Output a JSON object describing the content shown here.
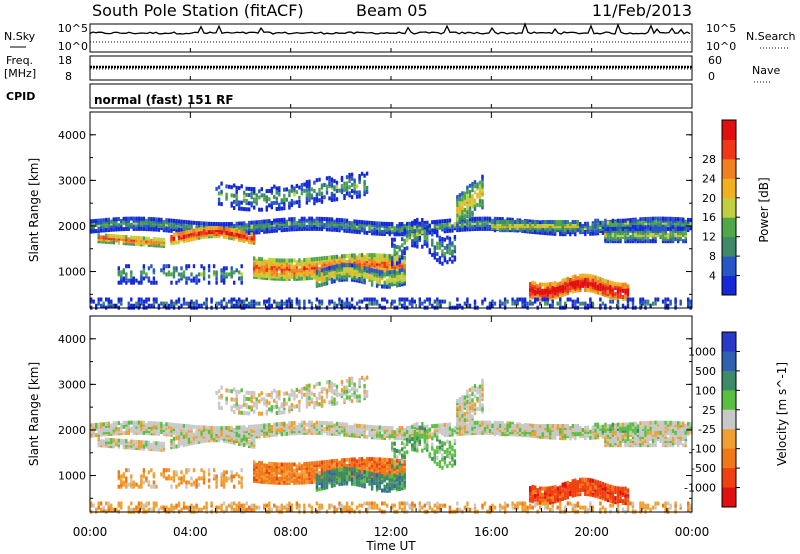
{
  "header": {
    "title": "South Pole Station (fitACF)",
    "beam": "Beam 05",
    "date": "11/Feb/2013"
  },
  "side_labels": {
    "nsky": "N.Sky",
    "nsearch": "N.Search",
    "freq_top": "Freq.",
    "freq_unit": "[MHz]",
    "nave": "Nave",
    "cpid": "CPID"
  },
  "strip_ticks": {
    "nsky_left": [
      "10^5",
      "10^0"
    ],
    "nsky_right": [
      "10^5",
      "10^0"
    ],
    "freq_left": [
      "18",
      "8"
    ],
    "nave_right": [
      "60",
      "0"
    ]
  },
  "cpid_text": "normal (fast) 151 RF",
  "chart_data": [
    {
      "type": "heatmap",
      "name": "power",
      "ylabel": "Slant Range [km]",
      "xlabel": "",
      "ylim": [
        200,
        4500
      ],
      "yticks": [
        "1000",
        "2000",
        "3000",
        "4000"
      ],
      "colorbar": {
        "label": "Power [dB]",
        "ticks": [
          "4",
          "8",
          "12",
          "16",
          "20",
          "24",
          "28"
        ],
        "colors": [
          "#1428d8",
          "#2855c8",
          "#3c8a68",
          "#4ea84a",
          "#c0d040",
          "#f0b020",
          "#f08020",
          "#f03818",
          "#e01010"
        ]
      }
    },
    {
      "type": "heatmap",
      "name": "velocity",
      "ylabel": "Slant Range [km]",
      "xlabel": "Time UT",
      "ylim": [
        200,
        4500
      ],
      "yticks": [
        "1000",
        "2000",
        "3000",
        "4000"
      ],
      "xticks": [
        "00:00",
        "04:00",
        "08:00",
        "12:00",
        "16:00",
        "20:00",
        "00:00"
      ],
      "colorbar": {
        "label": "Velocity [m s^-1]",
        "ticks": [
          "1000",
          "500",
          "100",
          "25",
          "-25",
          "-100",
          "-500",
          "-1000"
        ],
        "colors": [
          "#2838c8",
          "#3060b0",
          "#3c8a68",
          "#58c040",
          "#c8c8c8",
          "#f0a030",
          "#f07818",
          "#f04010",
          "#e01010"
        ]
      }
    }
  ]
}
